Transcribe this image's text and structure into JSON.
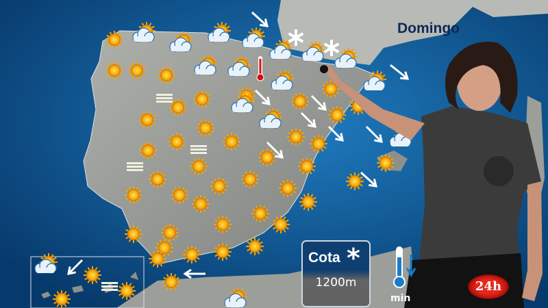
{
  "day_label": "Domingo",
  "snow_level": {
    "label": "Cota",
    "icon": "snowflake-icon",
    "value": "1200m"
  },
  "temperature_legend": {
    "icon": "thermometer-down-icon",
    "label": "min"
  },
  "channel_logo": "24h",
  "map_icons": {
    "sun": "sun-icon",
    "cloud": "sun-cloud-icon",
    "wind": "wind-arrow-icon",
    "snow": "snowflake-icon",
    "fog": "fog-icon",
    "temp": "thermometer-icon"
  },
  "colors": {
    "sea": "#0a4f86",
    "land": "#9a9c98",
    "logo": "#e8281c",
    "title": "#0d2a55"
  }
}
